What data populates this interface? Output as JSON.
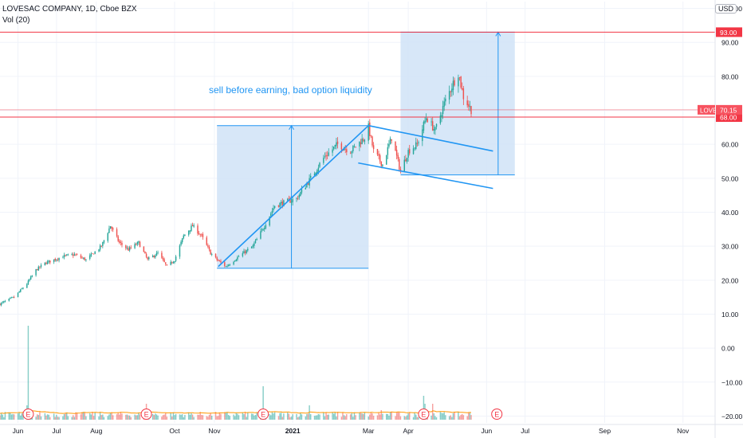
{
  "header": {
    "title": "LOVESAC COMPANY, 1D, Cboe BZX",
    "indicator": "Vol (20)",
    "currency_button": "USD"
  },
  "annotation": "sell before earning, bad option liquidity",
  "colors": {
    "up": "#26a69a",
    "down": "#ef5350",
    "box_fill": "#d0e3f7",
    "drawing_line": "#2196f3",
    "level_line": "#f23645",
    "ticker_badge": "#f7525f"
  },
  "chart_data": {
    "type": "candlestick",
    "title": "LOVESAC COMPANY, 1D, Cboe BZX",
    "ylim": [
      -22,
      102
    ],
    "y_ticks": [
      -20,
      -10,
      0,
      10,
      20,
      30,
      40,
      50,
      60,
      70,
      80,
      90,
      100
    ],
    "y_tick_labels": [
      "−20.00",
      "−10.00",
      "0.00",
      "10.00",
      "20.00",
      "30.00",
      "40.00",
      "50.00",
      "60.00",
      "70.00",
      "80.00",
      "90.00",
      "100.00"
    ],
    "x_range": [
      "2020-05-18",
      "2021-11-26"
    ],
    "x_ticks": [
      {
        "label": "Jun",
        "date": "2020-06-01"
      },
      {
        "label": "Jul",
        "date": "2020-07-01"
      },
      {
        "label": "Aug",
        "date": "2020-08-01"
      },
      {
        "label": "Oct",
        "date": "2020-10-01"
      },
      {
        "label": "Nov",
        "date": "2020-11-01"
      },
      {
        "label": "2021",
        "date": "2021-01-01"
      },
      {
        "label": "Mar",
        "date": "2021-03-01"
      },
      {
        "label": "Apr",
        "date": "2021-04-01"
      },
      {
        "label": "Jun",
        "date": "2021-06-01"
      },
      {
        "label": "Jul",
        "date": "2021-07-01"
      },
      {
        "label": "Sep",
        "date": "2021-09-01"
      },
      {
        "label": "Nov",
        "date": "2021-11-01"
      }
    ],
    "price_path": [
      [
        "2020-05-18",
        13
      ],
      [
        "2020-05-29",
        15
      ],
      [
        "2020-06-08",
        19
      ],
      [
        "2020-06-15",
        23
      ],
      [
        "2020-06-22",
        25
      ],
      [
        "2020-07-06",
        27
      ],
      [
        "2020-07-15",
        27.5
      ],
      [
        "2020-07-24",
        26
      ],
      [
        "2020-08-05",
        30
      ],
      [
        "2020-08-12",
        36
      ],
      [
        "2020-08-19",
        31
      ],
      [
        "2020-08-26",
        29
      ],
      [
        "2020-09-03",
        31
      ],
      [
        "2020-09-10",
        26
      ],
      [
        "2020-09-18",
        28
      ],
      [
        "2020-09-25",
        24
      ],
      [
        "2020-10-01",
        26
      ],
      [
        "2020-10-08",
        33
      ],
      [
        "2020-10-15",
        36
      ],
      [
        "2020-10-22",
        33
      ],
      [
        "2020-10-29",
        28
      ],
      [
        "2020-11-03",
        26
      ],
      [
        "2020-11-10",
        24
      ],
      [
        "2020-11-20",
        27
      ],
      [
        "2020-12-01",
        30
      ],
      [
        "2020-12-10",
        36
      ],
      [
        "2020-12-18",
        42
      ],
      [
        "2021-01-04",
        44
      ],
      [
        "2021-01-15",
        50
      ],
      [
        "2021-01-25",
        56
      ],
      [
        "2021-02-05",
        60
      ],
      [
        "2021-02-15",
        58
      ],
      [
        "2021-02-26",
        62
      ],
      [
        "2021-03-01",
        65
      ],
      [
        "2021-03-05",
        58
      ],
      [
        "2021-03-12",
        54
      ],
      [
        "2021-03-19",
        62
      ],
      [
        "2021-03-26",
        52
      ],
      [
        "2021-04-01",
        58
      ],
      [
        "2021-04-08",
        60
      ],
      [
        "2021-04-15",
        68
      ],
      [
        "2021-04-22",
        64
      ],
      [
        "2021-04-29",
        72
      ],
      [
        "2021-05-06",
        78
      ],
      [
        "2021-05-10",
        81
      ],
      [
        "2021-05-14",
        74
      ],
      [
        "2021-05-20",
        70.15
      ]
    ],
    "earnings_markers": {
      "label": "E",
      "dates": [
        "2020-06-09",
        "2020-09-09",
        "2020-12-09",
        "2021-04-13",
        "2021-06-09"
      ]
    },
    "horizontal_levels": [
      {
        "value": 93,
        "label": "93.00"
      },
      {
        "value": 68,
        "label": "68.00"
      }
    ],
    "last_price": {
      "value": 70.15,
      "label": "70.15",
      "ticker": "LOVE"
    },
    "drawings": {
      "boxes": [
        {
          "x_start": "2020-11-03",
          "x_end": "2021-03-01",
          "y_low": 23.5,
          "y_high": 65.5
        },
        {
          "x_start": "2021-03-26",
          "x_end": "2021-06-23",
          "y_low": 51,
          "y_high": 93
        }
      ],
      "arrows": [
        {
          "x": "2020-12-31",
          "y_from": 23.5,
          "y_to": 65.5
        },
        {
          "x": "2021-06-10",
          "y_from": 51,
          "y_to": 93
        }
      ],
      "trend_lines": [
        {
          "x1": "2020-11-04",
          "y1": 24,
          "x2": "2021-03-01",
          "y2": 65.5
        },
        {
          "x1": "2021-03-01",
          "y1": 65.5,
          "x2": "2021-06-06",
          "y2": 58
        },
        {
          "x1": "2021-02-21",
          "y1": 54.5,
          "x2": "2021-06-06",
          "y2": 47
        }
      ]
    },
    "volume_series": {
      "name": "Vol (20)"
    }
  }
}
